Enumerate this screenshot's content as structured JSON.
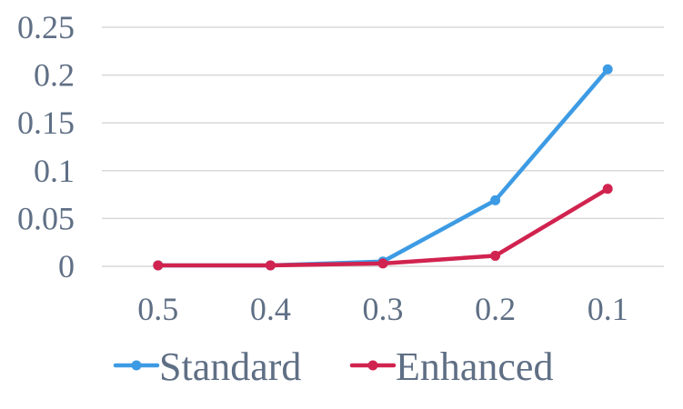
{
  "chart_data": {
    "type": "line",
    "title": "",
    "xlabel": "",
    "ylabel": "",
    "categories": [
      "0.5",
      "0.4",
      "0.3",
      "0.2",
      "0.1"
    ],
    "ylim": [
      0,
      0.25
    ],
    "yticks": [
      "0",
      "0.05",
      "0.1",
      "0.15",
      "0.2",
      "0.25"
    ],
    "grid": true,
    "legend": "bottom",
    "series": [
      {
        "name": "Standard",
        "color": "#3d9be4",
        "values": [
          0.001,
          0.001,
          0.005,
          0.069,
          0.206
        ]
      },
      {
        "name": "Enhanced",
        "color": "#d1234f",
        "values": [
          0.001,
          0.001,
          0.003,
          0.011,
          0.081
        ]
      }
    ]
  }
}
